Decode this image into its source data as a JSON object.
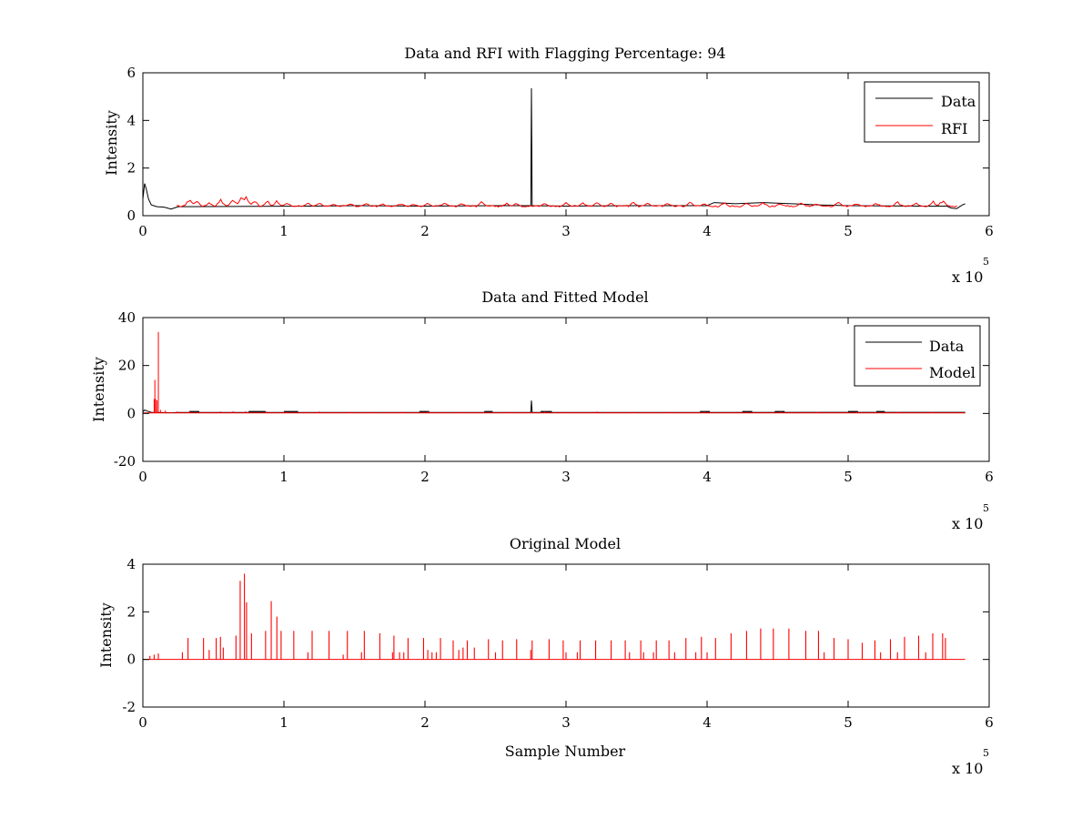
{
  "figure": {
    "background": "#ffffff"
  },
  "chart_data": [
    {
      "type": "line",
      "title": "Data and RFI with Flagging Percentage: 94",
      "xlabel": "",
      "ylabel": "Intensity",
      "xlim": [
        0,
        600000
      ],
      "ylim": [
        0,
        6
      ],
      "xticks": [
        0,
        1,
        2,
        3,
        4,
        5,
        6
      ],
      "yticks": [
        0,
        2,
        4,
        6
      ],
      "x_multiplier": {
        "base": "x 10",
        "exponent": "5"
      },
      "grid": false,
      "legend_position": "top-right",
      "series": [
        {
          "name": "Data",
          "color": "#000000",
          "baseline": 0.4,
          "points": [
            [
              0,
              0.7
            ],
            [
              1200,
              1.35
            ],
            [
              2500,
              1.1
            ],
            [
              4000,
              0.7
            ],
            [
              6000,
              0.45
            ],
            [
              10000,
              0.38
            ],
            [
              15000,
              0.36
            ],
            [
              20000,
              0.28
            ],
            [
              25000,
              0.38
            ],
            [
              120000,
              0.4
            ],
            [
              150000,
              0.42
            ],
            [
              200000,
              0.4
            ],
            [
              250000,
              0.42
            ],
            [
              275000,
              0.42
            ],
            [
              275500,
              5.35
            ],
            [
              276000,
              0.42
            ],
            [
              300000,
              0.4
            ],
            [
              350000,
              0.42
            ],
            [
              400000,
              0.42
            ],
            [
              405000,
              0.55
            ],
            [
              420000,
              0.5
            ],
            [
              440000,
              0.55
            ],
            [
              460000,
              0.5
            ],
            [
              480000,
              0.45
            ],
            [
              500000,
              0.42
            ],
            [
              550000,
              0.4
            ],
            [
              570000,
              0.4
            ],
            [
              573000,
              0.32
            ],
            [
              577000,
              0.3
            ],
            [
              581000,
              0.45
            ],
            [
              583000,
              0.5
            ]
          ]
        },
        {
          "name": "RFI",
          "color": "#ff0000",
          "range": [
            24000,
            578000
          ],
          "baseline": 0.4,
          "bursts": [
            [
              33000,
              0.8
            ],
            [
              38000,
              0.75
            ],
            [
              47000,
              0.55
            ],
            [
              55000,
              0.75
            ],
            [
              64000,
              0.8
            ],
            [
              70000,
              0.95
            ],
            [
              73000,
              1.05
            ],
            [
              79000,
              0.75
            ],
            [
              88000,
              0.7
            ],
            [
              95000,
              0.65
            ],
            [
              102000,
              0.6
            ],
            [
              117000,
              0.55
            ],
            [
              125000,
              0.55
            ],
            [
              135000,
              0.5
            ],
            [
              147000,
              0.55
            ],
            [
              158000,
              0.55
            ],
            [
              170000,
              0.5
            ],
            [
              183000,
              0.55
            ],
            [
              192000,
              0.5
            ],
            [
              202000,
              0.55
            ],
            [
              214000,
              0.6
            ],
            [
              226000,
              0.55
            ],
            [
              240000,
              0.6
            ],
            [
              258000,
              0.55
            ],
            [
              265000,
              0.55
            ],
            [
              285000,
              0.55
            ],
            [
              300000,
              0.6
            ],
            [
              312000,
              0.55
            ],
            [
              322000,
              0.6
            ],
            [
              332000,
              0.55
            ],
            [
              348000,
              0.6
            ],
            [
              358000,
              0.55
            ],
            [
              372000,
              0.55
            ],
            [
              388000,
              0.6
            ],
            [
              398000,
              0.55
            ],
            [
              412000,
              0.6
            ],
            [
              428000,
              0.55
            ],
            [
              440000,
              0.6
            ],
            [
              452000,
              0.55
            ],
            [
              467000,
              0.6
            ],
            [
              478000,
              0.55
            ],
            [
              493000,
              0.6
            ],
            [
              506000,
              0.55
            ],
            [
              520000,
              0.55
            ],
            [
              535000,
              0.6
            ],
            [
              548000,
              0.55
            ],
            [
              560000,
              0.65
            ],
            [
              567000,
              0.7
            ]
          ]
        }
      ]
    },
    {
      "type": "line",
      "title": "Data and Fitted Model",
      "xlabel": "",
      "ylabel": "Intensity",
      "xlim": [
        0,
        600000
      ],
      "ylim": [
        -20,
        40
      ],
      "xticks": [
        0,
        1,
        2,
        3,
        4,
        5,
        6
      ],
      "yticks": [
        -20,
        0,
        20,
        40
      ],
      "x_multiplier": {
        "base": "x 10",
        "exponent": "5"
      },
      "grid": false,
      "legend_position": "top-right",
      "series": [
        {
          "name": "Data",
          "color": "#000000",
          "points": [
            [
              0,
              0.7
            ],
            [
              1200,
              1.4
            ],
            [
              3000,
              1.0
            ],
            [
              6000,
              0.45
            ],
            [
              20000,
              0.3
            ],
            [
              25000,
              0.4
            ],
            [
              275000,
              0.4
            ],
            [
              275500,
              5.4
            ],
            [
              276000,
              0.4
            ],
            [
              583000,
              0.45
            ]
          ],
          "dashes": [
            [
              33000,
              40000
            ],
            [
              75000,
              87000
            ],
            [
              100000,
              110000
            ],
            [
              196000,
              203000
            ],
            [
              242000,
              248000
            ],
            [
              282000,
              290000
            ],
            [
              395000,
              402000
            ],
            [
              425000,
              432000
            ],
            [
              448000,
              455000
            ],
            [
              500000,
              507000
            ],
            [
              520000,
              526000
            ]
          ],
          "dash_level": 0.8
        },
        {
          "name": "Model",
          "color": "#ff0000",
          "spikes": [
            [
              8000,
              6.0
            ],
            [
              8500,
              14.0
            ],
            [
              9000,
              6.0
            ],
            [
              10000,
              5.5
            ],
            [
              11000,
              34.0
            ],
            [
              12500,
              1.5
            ],
            [
              16000,
              1.2
            ]
          ],
          "baseline": 0.2,
          "bumps": [
            [
              24000,
              0.8
            ],
            [
              33000,
              0.9
            ],
            [
              42000,
              0.7
            ],
            [
              55000,
              0.8
            ],
            [
              64000,
              0.9
            ],
            [
              73000,
              0.9
            ],
            [
              88000,
              0.8
            ],
            [
              102000,
              0.7
            ],
            [
              125000,
              0.8
            ],
            [
              147000,
              0.7
            ],
            [
              160000,
              0.6
            ],
            [
              183000,
              0.7
            ],
            [
              202000,
              0.8
            ],
            [
              226000,
              0.6
            ],
            [
              258000,
              0.7
            ],
            [
              285000,
              0.8
            ],
            [
              300000,
              0.7
            ],
            [
              322000,
              0.8
            ],
            [
              348000,
              0.7
            ],
            [
              372000,
              0.7
            ],
            [
              398000,
              0.8
            ],
            [
              428000,
              0.7
            ],
            [
              452000,
              0.8
            ],
            [
              478000,
              0.7
            ],
            [
              506000,
              0.7
            ],
            [
              535000,
              0.7
            ],
            [
              560000,
              0.7
            ]
          ],
          "range_end": 583000
        }
      ]
    },
    {
      "type": "line",
      "title": "Original Model",
      "xlabel": "Sample Number",
      "ylabel": "Intensity",
      "xlim": [
        0,
        600000
      ],
      "ylim": [
        -2,
        4
      ],
      "xticks": [
        0,
        1,
        2,
        3,
        4,
        5,
        6
      ],
      "yticks": [
        -2,
        0,
        2,
        4
      ],
      "x_multiplier": {
        "base": "x 10",
        "exponent": "5"
      },
      "grid": false,
      "series": [
        {
          "color": "#ff0000",
          "range": [
            0,
            583000
          ],
          "baseline": 0.0,
          "spikes": [
            [
              5000,
              0.15
            ],
            [
              8000,
              0.2
            ],
            [
              11000,
              0.25
            ],
            [
              28000,
              0.3
            ],
            [
              32000,
              0.9
            ],
            [
              43000,
              0.9
            ],
            [
              47000,
              0.4
            ],
            [
              52000,
              0.9
            ],
            [
              55000,
              0.95
            ],
            [
              57000,
              0.5
            ],
            [
              66000,
              1.0
            ],
            [
              69000,
              3.3
            ],
            [
              72000,
              3.6
            ],
            [
              73500,
              2.4
            ],
            [
              77000,
              1.1
            ],
            [
              87000,
              1.2
            ],
            [
              91000,
              2.45
            ],
            [
              95000,
              1.8
            ],
            [
              98000,
              1.2
            ],
            [
              107000,
              1.2
            ],
            [
              117000,
              0.3
            ],
            [
              120000,
              1.2
            ],
            [
              132000,
              1.2
            ],
            [
              142000,
              0.2
            ],
            [
              145000,
              1.2
            ],
            [
              155000,
              0.3
            ],
            [
              157000,
              1.2
            ],
            [
              168000,
              1.1
            ],
            [
              177000,
              0.3
            ],
            [
              178000,
              1.0
            ],
            [
              182000,
              0.3
            ],
            [
              185000,
              0.3
            ],
            [
              188000,
              0.9
            ],
            [
              199000,
              0.9
            ],
            [
              202000,
              0.4
            ],
            [
              205000,
              0.3
            ],
            [
              208000,
              0.3
            ],
            [
              211000,
              0.9
            ],
            [
              220000,
              0.8
            ],
            [
              224000,
              0.4
            ],
            [
              227000,
              0.5
            ],
            [
              230000,
              0.8
            ],
            [
              235000,
              0.5
            ],
            [
              245000,
              0.85
            ],
            [
              250000,
              0.3
            ],
            [
              255000,
              0.8
            ],
            [
              265000,
              0.85
            ],
            [
              275000,
              0.4
            ],
            [
              276000,
              0.8
            ],
            [
              288000,
              0.85
            ],
            [
              298000,
              0.8
            ],
            [
              300000,
              0.3
            ],
            [
              308000,
              0.3
            ],
            [
              310000,
              0.8
            ],
            [
              321000,
              0.8
            ],
            [
              332000,
              0.8
            ],
            [
              342000,
              0.8
            ],
            [
              345000,
              0.3
            ],
            [
              353000,
              0.8
            ],
            [
              355000,
              0.3
            ],
            [
              362000,
              0.3
            ],
            [
              364000,
              0.8
            ],
            [
              373000,
              0.8
            ],
            [
              377000,
              0.3
            ],
            [
              385000,
              0.9
            ],
            [
              392000,
              0.3
            ],
            [
              396000,
              0.95
            ],
            [
              400000,
              0.3
            ],
            [
              406000,
              0.9
            ],
            [
              417000,
              1.1
            ],
            [
              428000,
              1.2
            ],
            [
              438000,
              1.3
            ],
            [
              447000,
              1.3
            ],
            [
              458000,
              1.3
            ],
            [
              470000,
              1.2
            ],
            [
              479000,
              1.2
            ],
            [
              483000,
              0.3
            ],
            [
              490000,
              0.9
            ],
            [
              500000,
              0.85
            ],
            [
              510000,
              0.7
            ],
            [
              519000,
              0.8
            ],
            [
              523000,
              0.3
            ],
            [
              530000,
              0.85
            ],
            [
              535000,
              0.3
            ],
            [
              540000,
              0.95
            ],
            [
              550000,
              1.0
            ],
            [
              555000,
              0.3
            ],
            [
              560000,
              1.1
            ],
            [
              567000,
              1.1
            ],
            [
              569000,
              0.9
            ]
          ]
        }
      ]
    }
  ]
}
